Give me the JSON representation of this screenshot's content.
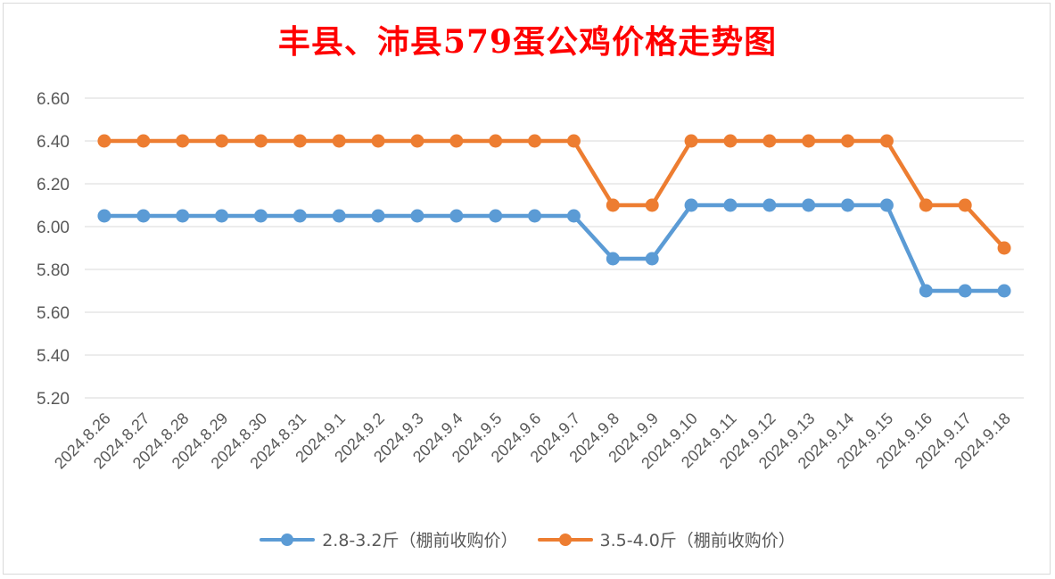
{
  "chart_data": {
    "type": "line",
    "title": "丰县、沛县579蛋公鸡价格走势图",
    "xlabel": "",
    "ylabel": "",
    "ylim": [
      5.2,
      6.6
    ],
    "yticks": [
      "5.20",
      "5.40",
      "5.60",
      "5.80",
      "6.00",
      "6.20",
      "6.40",
      "6.60"
    ],
    "grid": true,
    "legend_position": "bottom",
    "categories": [
      "2024.8.26",
      "2024.8.27",
      "2024.8.28",
      "2024.8.29",
      "2024.8.30",
      "2024.8.31",
      "2024.9.1",
      "2024.9.2",
      "2024.9.3",
      "2024.9.4",
      "2024.9.5",
      "2024.9.6",
      "2024.9.7",
      "2024.9.8",
      "2024.9.9",
      "2024.9.10",
      "2024.9.11",
      "2024.9.12",
      "2024.9.13",
      "2024.9.14",
      "2024.9.15",
      "2024.9.16",
      "2024.9.17",
      "2024.9.18"
    ],
    "series": [
      {
        "name": "2.8-3.2斤（棚前收购价）",
        "color": "#5b9bd5",
        "values": [
          6.05,
          6.05,
          6.05,
          6.05,
          6.05,
          6.05,
          6.05,
          6.05,
          6.05,
          6.05,
          6.05,
          6.05,
          6.05,
          5.85,
          5.85,
          6.1,
          6.1,
          6.1,
          6.1,
          6.1,
          6.1,
          5.7,
          5.7,
          5.7
        ]
      },
      {
        "name": "3.5-4.0斤（棚前收购价）",
        "color": "#ed7d31",
        "values": [
          6.4,
          6.4,
          6.4,
          6.4,
          6.4,
          6.4,
          6.4,
          6.4,
          6.4,
          6.4,
          6.4,
          6.4,
          6.4,
          6.1,
          6.1,
          6.4,
          6.4,
          6.4,
          6.4,
          6.4,
          6.4,
          6.1,
          6.1,
          5.9
        ]
      }
    ]
  }
}
